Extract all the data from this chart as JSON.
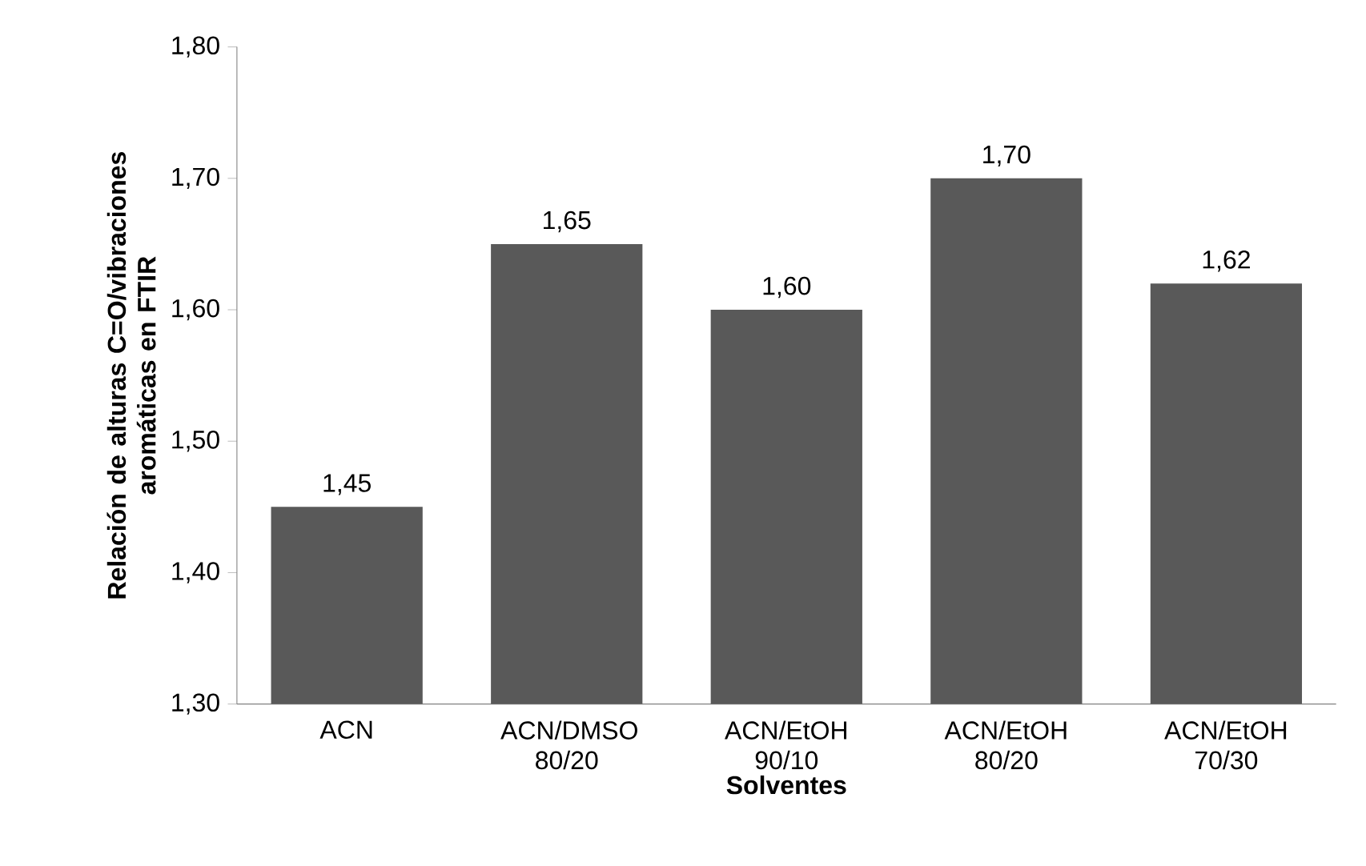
{
  "chart_data": {
    "type": "bar",
    "xlabel": "Solventes",
    "ylabel": "Relación de alturas C=O/vibraciones aromáticas en FTIR",
    "categories": [
      "ACN",
      "ACN/DMSO 80/20",
      "ACN/EtOH 90/10",
      "ACN/EtOH 80/20",
      "ACN/EtOH 70/30"
    ],
    "values": [
      1.45,
      1.65,
      1.6,
      1.7,
      1.62
    ],
    "value_labels": [
      "1,45",
      "1,65",
      "1,60",
      "1,70",
      "1,62"
    ],
    "color": "#595959",
    "yticks": [
      {
        "value": 1.3,
        "label": "1,30"
      },
      {
        "value": 1.4,
        "label": "1,40"
      },
      {
        "value": 1.5,
        "label": "1,50"
      },
      {
        "value": 1.6,
        "label": "1,60"
      },
      {
        "value": 1.7,
        "label": "1,70"
      },
      {
        "value": 1.8,
        "label": "1,80"
      }
    ],
    "ylim": [
      1.3,
      1.8
    ]
  }
}
